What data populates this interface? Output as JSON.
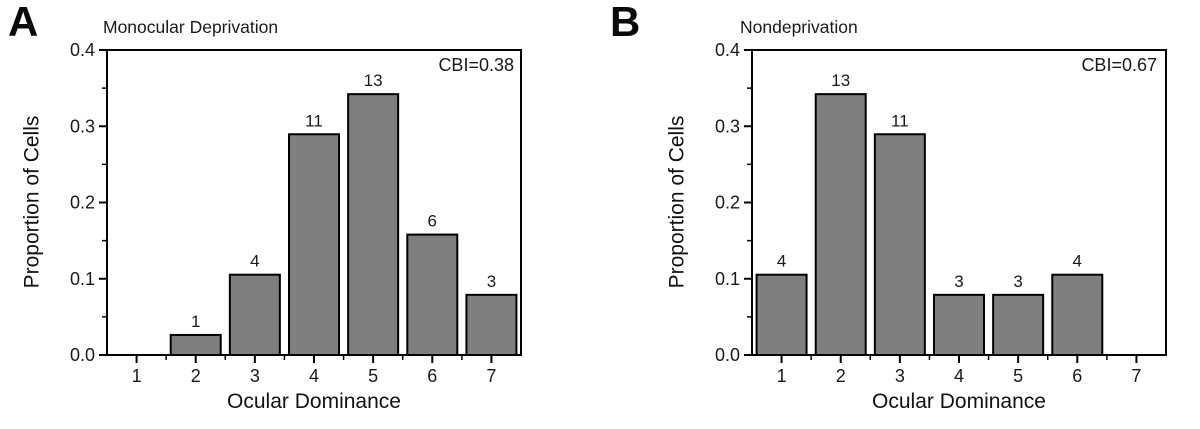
{
  "figure": {
    "background_color": "#ffffff",
    "text_color": "#1a1a1a",
    "axis_color": "#000000"
  },
  "chart_data": [
    {
      "type": "bar",
      "panel_label": "A",
      "title": "Monocular Deprivation",
      "annotation": "CBI=0.38",
      "xlabel": "Ocular Dominance",
      "ylabel": "Proportion of Cells",
      "categories": [
        "1",
        "2",
        "3",
        "4",
        "5",
        "6",
        "7"
      ],
      "values": [
        0,
        0.0263,
        0.1053,
        0.2895,
        0.3421,
        0.1579,
        0.0789
      ],
      "counts": [
        0,
        1,
        4,
        11,
        13,
        6,
        3
      ],
      "bar_labels": [
        "",
        "1",
        "4",
        "11",
        "13",
        "6",
        "3"
      ],
      "ylim": [
        0,
        0.4
      ],
      "yticks": [
        0,
        0.1,
        0.2,
        0.3,
        0.4
      ],
      "ytick_labels": [
        "0.0",
        "0.1",
        "0.2",
        "0.3",
        "0.4"
      ],
      "y_minor_ticks": [
        0.05,
        0.15,
        0.25,
        0.35
      ],
      "bar_fill": "#7F7F7F",
      "bar_stroke": "#000000",
      "grid": false,
      "legend": "none"
    },
    {
      "type": "bar",
      "panel_label": "B",
      "title": "Nondeprivation",
      "annotation": "CBI=0.67",
      "xlabel": "Ocular Dominance",
      "ylabel": "Proportion of Cells",
      "categories": [
        "1",
        "2",
        "3",
        "4",
        "5",
        "6",
        "7"
      ],
      "values": [
        0.1053,
        0.3421,
        0.2895,
        0.0789,
        0.0789,
        0.1053,
        0
      ],
      "counts": [
        4,
        13,
        11,
        3,
        3,
        4,
        0
      ],
      "bar_labels": [
        "4",
        "13",
        "11",
        "3",
        "3",
        "4",
        ""
      ],
      "ylim": [
        0,
        0.4
      ],
      "yticks": [
        0,
        0.1,
        0.2,
        0.3,
        0.4
      ],
      "ytick_labels": [
        "0.0",
        "0.1",
        "0.2",
        "0.3",
        "0.4"
      ],
      "y_minor_ticks": [
        0.05,
        0.15,
        0.25,
        0.35
      ],
      "bar_fill": "#7F7F7F",
      "bar_stroke": "#000000",
      "grid": false,
      "legend": "none"
    }
  ]
}
